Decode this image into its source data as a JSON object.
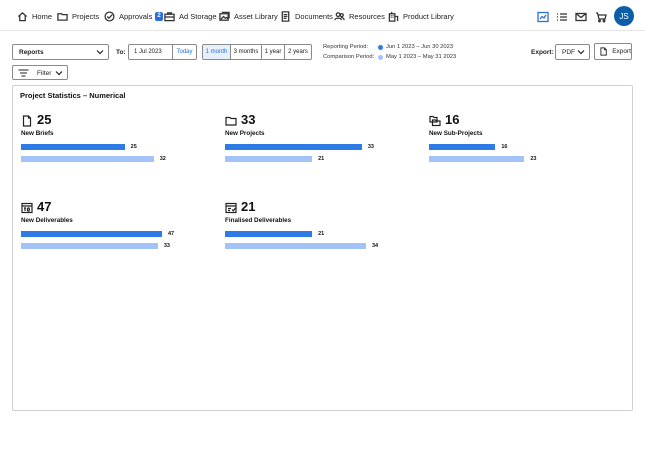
{
  "nav": {
    "items": [
      {
        "label": "Home",
        "icon": "home-icon"
      },
      {
        "label": "Projects",
        "icon": "folder-icon"
      },
      {
        "label": "Approvals",
        "icon": "check-circle-icon",
        "badge": "2"
      },
      {
        "label": "Ad Storage",
        "icon": "briefcase-icon"
      },
      {
        "label": "Asset Library",
        "icon": "image-library-icon"
      },
      {
        "label": "Documents",
        "icon": "document-icon"
      },
      {
        "label": "Resources",
        "icon": "people-icon"
      },
      {
        "label": "Product Library",
        "icon": "building-icon"
      }
    ],
    "right_icons": [
      "dashboard-icon",
      "list-icon",
      "mail-icon",
      "cart-icon"
    ],
    "avatar_initials": "JS"
  },
  "toolbar": {
    "report_select": "Reports",
    "to_label": "To:",
    "date_value": "1 Jul 2023",
    "today_label": "Today",
    "ranges": [
      "1 month",
      "3 months",
      "1 year",
      "2 years"
    ],
    "active_range": "1 month",
    "reporting_label": "Reporting Period:",
    "reporting_value": "Jun 1 2023 – Jun 30 2023",
    "comparison_label": "Comparison Period:",
    "comparison_value": "May 1 2023 – May 31 2023",
    "export_label": "Export:",
    "export_format": "PDF",
    "export_button": "Export",
    "filter_label": "Filter"
  },
  "colors": {
    "reporting": "#2f7be6",
    "comparison": "#a3c2f7",
    "accent": "#2a6fdb",
    "avatar": "#0d5ea8"
  },
  "panel": {
    "title": "Project Statistics – Numerical",
    "scale_max": 34,
    "stats": [
      {
        "icon": "document-icon",
        "value": "25",
        "label": "New Briefs",
        "current": 25,
        "previous": 32
      },
      {
        "icon": "folder-icon",
        "value": "33",
        "label": "New Projects",
        "current": 33,
        "previous": 21
      },
      {
        "icon": "sub-projects-icon",
        "value": "16",
        "label": "New Sub-Projects",
        "current": 16,
        "previous": 23
      },
      {
        "icon": "deliverables-icon",
        "value": "47",
        "label": "New Deliverables",
        "current": 47,
        "previous": 33
      },
      {
        "icon": "finalised-deliverables-icon",
        "value": "21",
        "label": "Finalised Deliverables",
        "current": 21,
        "previous": 34
      }
    ]
  }
}
